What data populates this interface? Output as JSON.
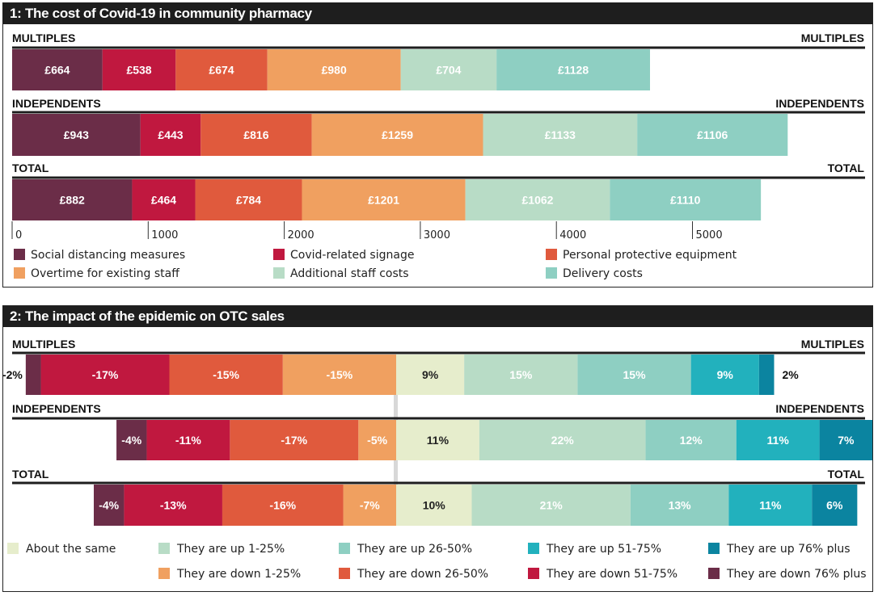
{
  "chart_data": [
    {
      "type": "bar",
      "stacked": true,
      "orientation": "horizontal",
      "title": "1: The cost of Covid-19 in community pharmacy",
      "xlim": [
        0,
        5900
      ],
      "x_ticks": [
        "0",
        "1000",
        "2000",
        "3000",
        "4000",
        "5000"
      ],
      "categories": [
        "MULTIPLES",
        "INDEPENDENTS",
        "TOTAL"
      ],
      "series": [
        {
          "name": "Social distancing measures",
          "color": "#6b2d48",
          "values": [
            664,
            943,
            882
          ],
          "labels": [
            "£664",
            "£943",
            "£882"
          ]
        },
        {
          "name": "Covid-related signage",
          "color": "#c0183f",
          "values": [
            538,
            443,
            464
          ],
          "labels": [
            "£538",
            "£443",
            "£464"
          ]
        },
        {
          "name": "Personal protective equipment",
          "color": "#e05a3d",
          "values": [
            674,
            816,
            784
          ],
          "labels": [
            "£674",
            "£816",
            "£784"
          ]
        },
        {
          "name": "Overtime for existing staff",
          "color": "#f0a060",
          "values": [
            980,
            1259,
            1201
          ],
          "labels": [
            "£980",
            "£1259",
            "£1201"
          ]
        },
        {
          "name": "Additional staff costs",
          "color": "#b8dcc6",
          "values": [
            704,
            1133,
            1062
          ],
          "labels": [
            "£704",
            "£1133",
            "£1062"
          ]
        },
        {
          "name": "Delivery costs",
          "color": "#8ecfc2",
          "values": [
            1128,
            1106,
            1110
          ],
          "labels": [
            "£1128",
            "£1106",
            "£1110"
          ]
        }
      ]
    },
    {
      "type": "bar",
      "stacked": true,
      "diverging": true,
      "orientation": "horizontal",
      "title": "2: The impact of the epidemic on OTC sales",
      "categories": [
        "MULTIPLES",
        "INDEPENDENTS",
        "TOTAL"
      ],
      "series": [
        {
          "name": "They are down 76% plus",
          "color": "#6b2d48",
          "values": [
            -2,
            -4,
            -4
          ],
          "labels": [
            "-2%",
            "-4%",
            "-4%"
          ]
        },
        {
          "name": "They are down 51-75%",
          "color": "#c0183f",
          "values": [
            -17,
            -11,
            -13
          ],
          "labels": [
            "-17%",
            "-11%",
            "-13%"
          ]
        },
        {
          "name": "They are down 26-50%",
          "color": "#e05a3d",
          "values": [
            -15,
            -17,
            -16
          ],
          "labels": [
            "-15%",
            "-17%",
            "-16%"
          ]
        },
        {
          "name": "They are down 1-25%",
          "color": "#f0a060",
          "values": [
            -15,
            -5,
            -7
          ],
          "labels": [
            "-15%",
            "-5%",
            "-7%"
          ]
        },
        {
          "name": "About the same",
          "color": "#e6edcc",
          "values": [
            9,
            11,
            10
          ],
          "labels": [
            "9%",
            "11%",
            "10%"
          ]
        },
        {
          "name": "They are up 1-25%",
          "color": "#b8dcc6",
          "values": [
            15,
            22,
            21
          ],
          "labels": [
            "15%",
            "22%",
            "21%"
          ]
        },
        {
          "name": "They are up 26-50%",
          "color": "#8ecfc2",
          "values": [
            15,
            12,
            13
          ],
          "labels": [
            "15%",
            "12%",
            "13%"
          ]
        },
        {
          "name": "They are up 51-75%",
          "color": "#22b1bd",
          "values": [
            9,
            11,
            11
          ],
          "labels": [
            "9%",
            "11%",
            "11%"
          ]
        },
        {
          "name": "They are up 76% plus",
          "color": "#0b84a0",
          "values": [
            2,
            7,
            6
          ],
          "labels": [
            "2%",
            "7%",
            "6%"
          ]
        }
      ],
      "legend_order": [
        "About the same",
        "They are up 1-25%",
        "They are up 26-50%",
        "They are up 51-75%",
        "They are up 76% plus",
        "They are down 1-25%",
        "They are down 26-50%",
        "They are down 51-75%",
        "They are down 76% plus"
      ]
    }
  ]
}
